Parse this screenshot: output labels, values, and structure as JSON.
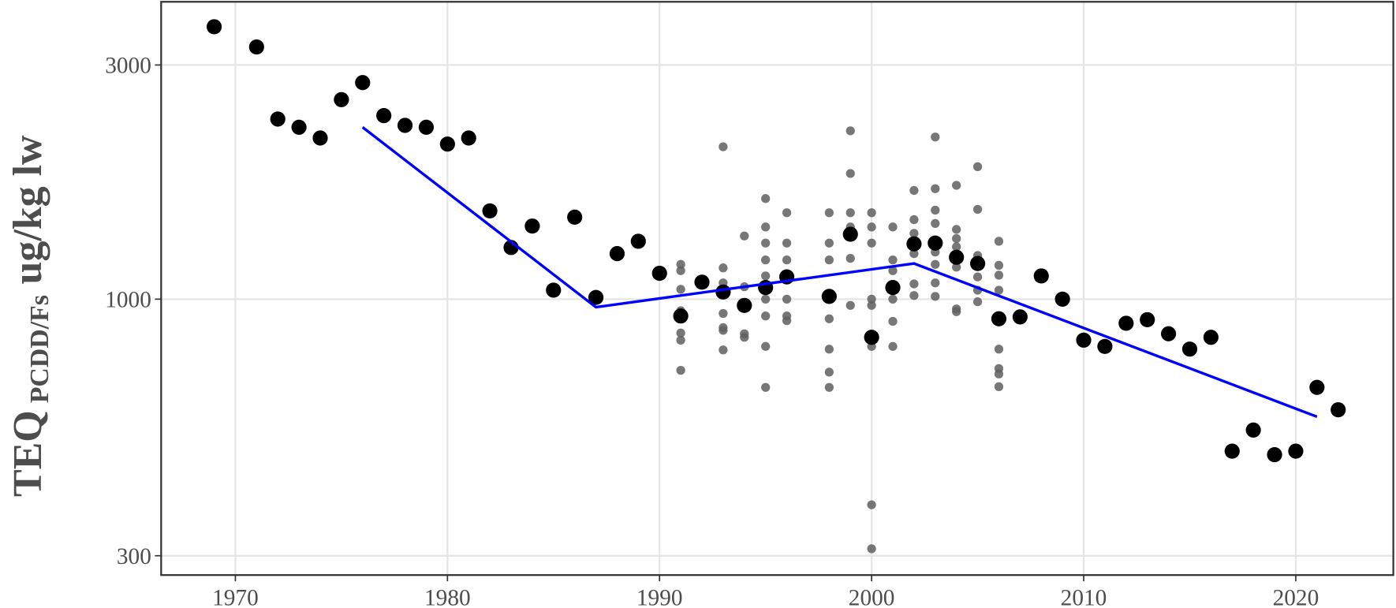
{
  "chart_data": {
    "type": "scatter",
    "y_label": {
      "main": "TEQ",
      "sub": "PCDD/Fs",
      "unit": "ug/kg lw"
    },
    "log_y": true,
    "grid": true,
    "xlim": [
      1966.5,
      2024.6
    ],
    "ylim": [
      274,
      4036
    ],
    "xticks": [
      1970,
      1980,
      1990,
      2000,
      2010,
      2020
    ],
    "yticks": [
      300,
      1000,
      3000
    ],
    "series": [
      {
        "color": "#5f5f5f",
        "x": [
          1991,
          1991,
          1991,
          1991,
          1991,
          1991,
          1991,
          1993,
          1993,
          1993,
          1993,
          1993,
          1993,
          1993,
          1994,
          1994,
          1994,
          1994,
          1995,
          1995,
          1995,
          1995,
          1995,
          1995,
          1995,
          1995,
          1995,
          1995,
          1996,
          1996,
          1996,
          1996,
          1996,
          1996,
          1996,
          1998,
          1998,
          1998,
          1998,
          1998,
          1998,
          1998,
          1998,
          1999,
          1999,
          1999,
          1999,
          1999,
          1999,
          2000,
          2000,
          2000,
          2000,
          2000,
          2000,
          2000,
          2000,
          2000,
          2001,
          2001,
          2001,
          2001,
          2001,
          2001,
          2002,
          2002,
          2002,
          2002,
          2002,
          2002,
          2003,
          2003,
          2003,
          2003,
          2003,
          2003,
          2003,
          2003,
          2003,
          2004,
          2004,
          2004,
          2004,
          2004,
          2004,
          2004,
          2005,
          2005,
          2005,
          2005,
          2005,
          2005,
          2006,
          2006,
          2006,
          2006,
          2006,
          2006,
          2006,
          2006
        ],
        "values": [
          1177,
          1143,
          1047,
          947,
          853,
          825,
          716,
          2044,
          1158,
          1079,
          935,
          875,
          864,
          788,
          1345,
          1060,
          850,
          836,
          1603,
          1403,
          1301,
          1202,
          1115,
          1060,
          1000,
          924,
          801,
          661,
          1500,
          1301,
          1202,
          1115,
          1000,
          924,
          904,
          1500,
          1301,
          1202,
          1013,
          912,
          791,
          710,
          661,
          2203,
          1803,
          1500,
          1403,
          1211,
          971,
          1500,
          1403,
          1301,
          1000,
          971,
          836,
          801,
          381,
          310,
          1403,
          1202,
          1143,
          1000,
          901,
          801,
          1665,
          1452,
          1362,
          1238,
          1074,
          1017,
          2140,
          1679,
          1518,
          1426,
          1318,
          1247,
          1177,
          1079,
          1013,
          1706,
          1387,
          1329,
          1279,
          1162,
          955,
          943,
          1862,
          1524,
          1227,
          1110,
          1043,
          988,
          1312,
          1172,
          1119,
          1043,
          791,
          722,
          704,
          663
        ]
      },
      {
        "color": "#000000",
        "x": [
          1969,
          1971,
          1972,
          1973,
          1974,
          1975,
          1976,
          1977,
          1978,
          1979,
          1980,
          1981,
          1982,
          1983,
          1984,
          1985,
          1986,
          1987,
          1988,
          1989,
          1990,
          1991,
          1992,
          1993,
          1994,
          1995,
          1996,
          1998,
          1999,
          2000,
          2001,
          2002,
          2003,
          2004,
          2005,
          2006,
          2007,
          2008,
          2009,
          2010,
          2011,
          2012,
          2013,
          2014,
          2015,
          2016,
          2017,
          2018,
          2019,
          2020,
          2021,
          2022
        ],
        "values": [
          3590,
          3265,
          2328,
          2240,
          2130,
          2550,
          2762,
          2366,
          2260,
          2240,
          2070,
          2130,
          1513,
          1274,
          1409,
          1043,
          1469,
          1008,
          1238,
          1312,
          1129,
          924,
          1083,
          1034,
          971,
          1056,
          1110,
          1013,
          1356,
          836,
          1056,
          1296,
          1301,
          1217,
          1182,
          912,
          920,
          1115,
          1000,
          825,
          801,
          893,
          908,
          850,
          791,
          836,
          490,
          541,
          482,
          490,
          661,
          595
        ]
      },
      {
        "color": "#0000ff",
        "type": "line",
        "x": [
          1976,
          1987,
          2002,
          2021
        ],
        "values": [
          2240,
          963,
          1182,
          576
        ]
      }
    ]
  }
}
